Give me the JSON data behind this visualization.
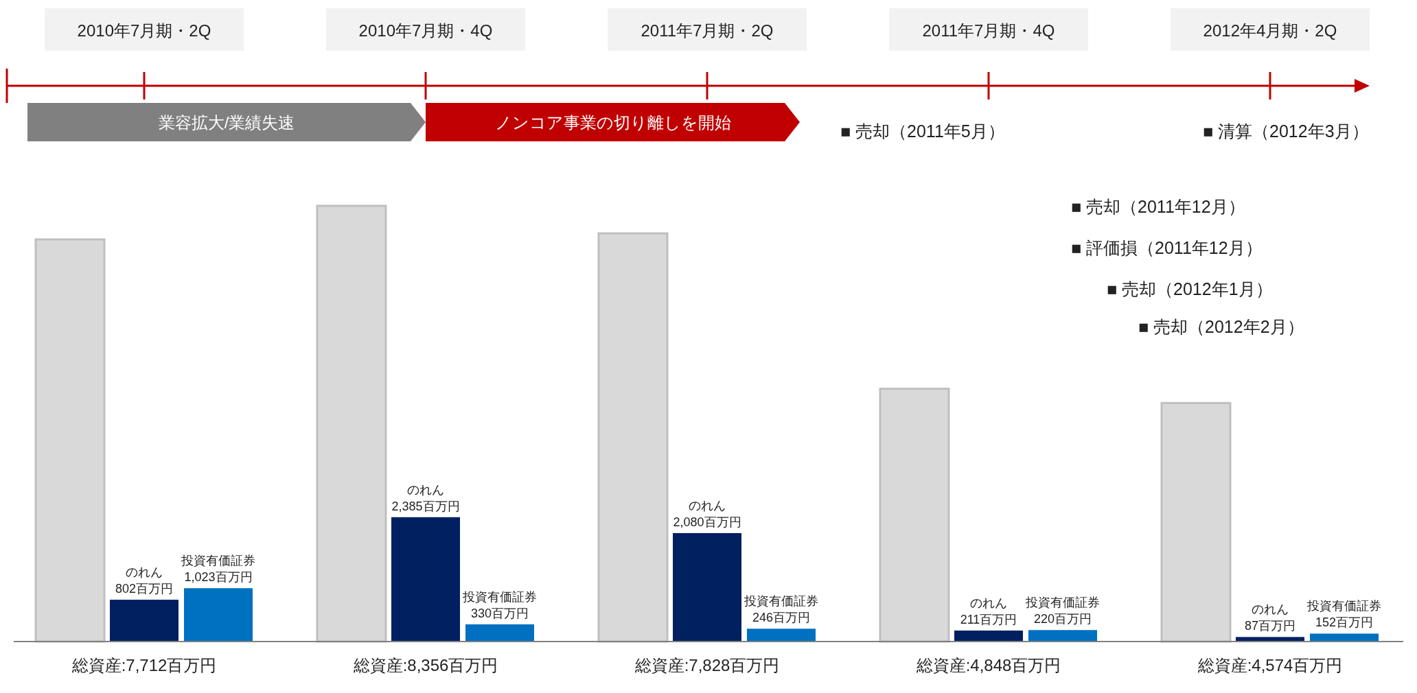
{
  "chart_data": {
    "type": "bar",
    "categories": [
      "2010年7月期・2Q",
      "2010年7月期・4Q",
      "2011年7月期・2Q",
      "2011年7月期・4Q",
      "2012年4月期・2Q"
    ],
    "series": [
      {
        "name": "総資産",
        "color": "#d9d9d9",
        "values": [
          7712,
          8356,
          7828,
          4848,
          4574
        ],
        "value_labels": [
          ":7,712百万円",
          ":8,356百万円",
          ":7,828百万円",
          ":4,848百万円",
          ":4,574百万円"
        ]
      },
      {
        "name": "のれん",
        "color": "#002060",
        "values": [
          802,
          2385,
          2080,
          211,
          87
        ],
        "value_labels": [
          "802百万円",
          "2,385百万円",
          "2,080百万円",
          "211百万円",
          "87百万円"
        ]
      },
      {
        "name": "投資有価証券",
        "color": "#0070c0",
        "values": [
          1023,
          330,
          246,
          220,
          152
        ],
        "value_labels": [
          "1,023百万円",
          "330百万円",
          "246百万円",
          "220百万円",
          "152百万円"
        ]
      }
    ],
    "annotations": [
      "業容拡大/業績失速",
      "ノンコア事業の切り離しを開始",
      "■ 売却（2011年5月）",
      "■ 清算（2012年3月）",
      "■ 売却（2011年12月）",
      "■ 評価損（2011年12月）",
      "■ 売却（2012年1月）",
      "■ 売却（2012年2月）"
    ]
  }
}
